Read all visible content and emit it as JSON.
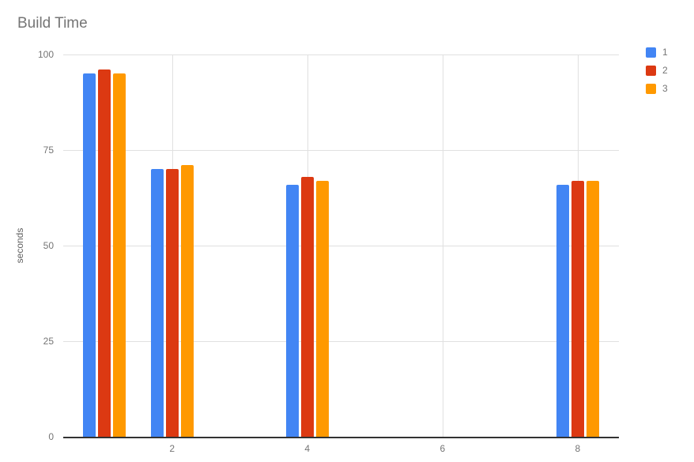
{
  "chart_data": {
    "type": "bar",
    "title": "Build Time",
    "xlabel": "",
    "ylabel": "seconds",
    "x": [
      1,
      2,
      4,
      8
    ],
    "x_ticks": [
      2,
      4,
      6,
      8
    ],
    "x_tick_labels": [
      "2",
      "4",
      "6",
      "8"
    ],
    "y_ticks": [
      0,
      25,
      50,
      75,
      100
    ],
    "y_tick_labels": [
      "0",
      "25",
      "50",
      "75",
      "100"
    ],
    "xlim": [
      0.39,
      8.61
    ],
    "ylim": [
      0,
      100
    ],
    "grid": true,
    "legend_position": "right",
    "series": [
      {
        "name": "1",
        "color": "#4285f4",
        "values": [
          95,
          70,
          66,
          66
        ]
      },
      {
        "name": "2",
        "color": "#dc3912",
        "values": [
          96,
          70,
          68,
          67
        ]
      },
      {
        "name": "3",
        "color": "#ff9900",
        "values": [
          95,
          71,
          67,
          67
        ]
      }
    ]
  },
  "colors": {
    "background": "#ffffff",
    "grid": "#e0e0e0",
    "baseline": "#333333",
    "tick_text": "#757575",
    "title_text": "#757575",
    "axis_title_text": "#616161"
  }
}
